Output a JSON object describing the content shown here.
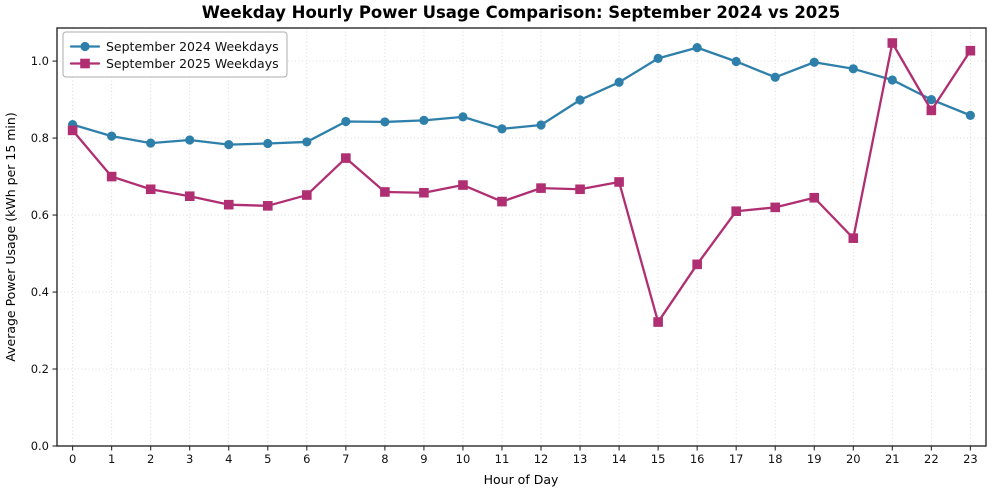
{
  "chart_data": {
    "type": "line",
    "title": "Weekday Hourly Power Usage Comparison: September 2024 vs 2025",
    "xlabel": "Hour of Day",
    "ylabel": "Average Power Usage (kWh per 15 min)",
    "x": [
      0,
      1,
      2,
      3,
      4,
      5,
      6,
      7,
      8,
      9,
      10,
      11,
      12,
      13,
      14,
      15,
      16,
      17,
      18,
      19,
      20,
      21,
      22,
      23
    ],
    "xtick_labels": [
      "0",
      "1",
      "2",
      "3",
      "4",
      "5",
      "6",
      "7",
      "8",
      "9",
      "10",
      "11",
      "12",
      "13",
      "14",
      "15",
      "16",
      "17",
      "18",
      "19",
      "20",
      "21",
      "22",
      "23"
    ],
    "yticks": [
      0.0,
      0.2,
      0.4,
      0.6,
      0.8,
      1.0
    ],
    "ytick_labels": [
      "0.0",
      "0.2",
      "0.4",
      "0.6",
      "0.8",
      "1.0"
    ],
    "xlim": [
      -0.4,
      23.4
    ],
    "ylim": [
      0,
      1.086
    ],
    "grid": true,
    "legend_position": "upper-left",
    "series": [
      {
        "name": "September 2024 Weekdays",
        "color": "#2e80ab",
        "marker": "circle",
        "values": [
          0.835,
          0.805,
          0.787,
          0.795,
          0.783,
          0.786,
          0.79,
          0.843,
          0.842,
          0.846,
          0.855,
          0.824,
          0.834,
          0.899,
          0.945,
          1.007,
          1.035,
          0.999,
          0.958,
          0.997,
          0.98,
          0.951,
          0.9,
          0.859
        ]
      },
      {
        "name": "September 2025 Weekdays",
        "color": "#b02f72",
        "marker": "square",
        "values": [
          0.82,
          0.7,
          0.667,
          0.649,
          0.627,
          0.624,
          0.652,
          0.748,
          0.66,
          0.658,
          0.678,
          0.635,
          0.67,
          0.667,
          0.686,
          0.322,
          0.472,
          0.61,
          0.62,
          0.645,
          0.54,
          1.047,
          0.872,
          1.027
        ]
      }
    ],
    "style": {
      "grid_color": "#d8d8d8",
      "frame_color": "#2a2a2a",
      "legend_border_color": "#adadad",
      "background": "#ffffff"
    }
  }
}
